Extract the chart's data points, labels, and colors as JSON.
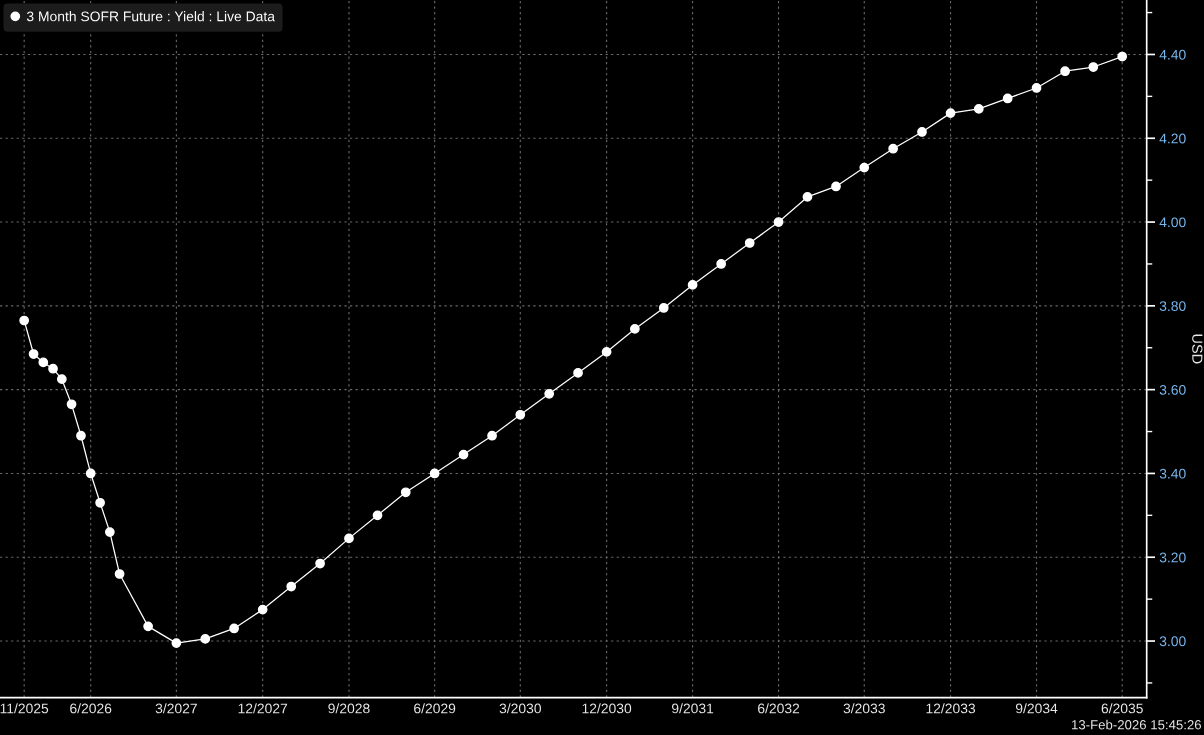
{
  "chart_data": {
    "type": "line",
    "x": [
      "2025-11",
      "2025-12",
      "2026-01",
      "2026-02",
      "2026-03",
      "2026-04",
      "2026-05",
      "2026-06",
      "2026-07",
      "2026-08",
      "2026-09",
      "2026-12",
      "2027-03",
      "2027-06",
      "2027-09",
      "2027-12",
      "2028-03",
      "2028-06",
      "2028-09",
      "2028-12",
      "2029-03",
      "2029-06",
      "2029-09",
      "2029-12",
      "2030-03",
      "2030-06",
      "2030-09",
      "2030-12",
      "2031-03",
      "2031-06",
      "2031-09",
      "2031-12",
      "2032-03",
      "2032-06",
      "2032-09",
      "2032-12",
      "2033-03",
      "2033-06",
      "2033-09",
      "2033-12",
      "2034-03",
      "2034-06",
      "2034-09",
      "2034-12",
      "2035-03",
      "2035-06"
    ],
    "series": [
      {
        "name": "3 Month SOFR Future : Yield : Live Data",
        "color": "#ffffff",
        "values": [
          3.765,
          3.685,
          3.665,
          3.65,
          3.625,
          3.565,
          3.49,
          3.4,
          3.33,
          3.26,
          3.16,
          3.035,
          2.995,
          3.005,
          3.03,
          3.075,
          3.13,
          3.185,
          3.245,
          3.3,
          3.355,
          3.4,
          3.445,
          3.49,
          3.54,
          3.59,
          3.64,
          3.69,
          3.745,
          3.795,
          3.85,
          3.9,
          3.95,
          4.0,
          4.06,
          4.085,
          4.13,
          4.175,
          4.215,
          4.26,
          4.27,
          4.295,
          4.32,
          4.36,
          4.37,
          4.395
        ]
      }
    ],
    "ylabel": "USD",
    "xlim": [
      "2025-08-16",
      "2035-08-18"
    ],
    "xticks": [
      {
        "value": "2025-11",
        "label": "11/2025"
      },
      {
        "value": "2026-06",
        "label": "6/2026"
      },
      {
        "value": "2027-03",
        "label": "3/2027"
      },
      {
        "value": "2027-12",
        "label": "12/2027"
      },
      {
        "value": "2028-09",
        "label": "9/2028"
      },
      {
        "value": "2029-06",
        "label": "6/2029"
      },
      {
        "value": "2030-03",
        "label": "3/2030"
      },
      {
        "value": "2030-12",
        "label": "12/2030"
      },
      {
        "value": "2031-09",
        "label": "9/2031"
      },
      {
        "value": "2032-06",
        "label": "6/2032"
      },
      {
        "value": "2033-03",
        "label": "3/2033"
      },
      {
        "value": "2033-12",
        "label": "12/2033"
      },
      {
        "value": "2034-09",
        "label": "9/2034"
      },
      {
        "value": "2035-06",
        "label": "6/2035"
      }
    ],
    "ylim": [
      2.865,
      4.53
    ],
    "yticks": [
      {
        "value": 2.9,
        "label": null
      },
      {
        "value": 3,
        "label": "3.00"
      },
      {
        "value": 3.1,
        "label": null
      },
      {
        "value": 3.2,
        "label": "3.20"
      },
      {
        "value": 3.3,
        "label": null
      },
      {
        "value": 3.4,
        "label": "3.40"
      },
      {
        "value": 3.5,
        "label": null
      },
      {
        "value": 3.6,
        "label": "3.60"
      },
      {
        "value": 3.7,
        "label": null
      },
      {
        "value": 3.8,
        "label": "3.80"
      },
      {
        "value": 3.9,
        "label": null
      },
      {
        "value": 4,
        "label": "4.00"
      },
      {
        "value": 4.1,
        "label": null
      },
      {
        "value": 4.2,
        "label": "4.20"
      },
      {
        "value": 4.3,
        "label": null
      },
      {
        "value": 4.4,
        "label": "4.40"
      },
      {
        "value": 4.5,
        "label": null
      }
    ],
    "grid": true,
    "legend": "top left",
    "marker": "circle",
    "line_style": "solid",
    "annotations": [
      "13-Feb-2026 15:45:26"
    ]
  }
}
